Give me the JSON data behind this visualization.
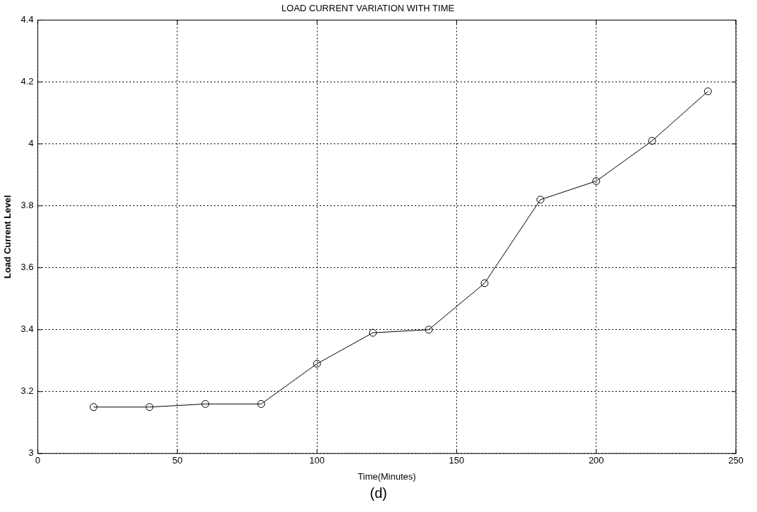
{
  "chart_data": {
    "type": "line",
    "title": "LOAD CURRENT VARIATION WITH TIME",
    "xlabel": "Time(Minutes)",
    "ylabel": "Load Current Level",
    "x": [
      20,
      40,
      60,
      80,
      100,
      120,
      140,
      160,
      180,
      200,
      220,
      240
    ],
    "series": [
      {
        "color": "#000000",
        "values": [
          3.15,
          3.15,
          3.16,
          3.16,
          3.29,
          3.39,
          3.4,
          3.55,
          3.82,
          3.88,
          4.01,
          4.17
        ]
      }
    ],
    "xlim": [
      0,
      250
    ],
    "xticks": [
      0,
      50,
      100,
      150,
      200,
      250
    ],
    "ylim": [
      3,
      4.4
    ],
    "yticks": [
      3,
      3.2,
      3.4,
      3.6,
      3.8,
      4,
      4.2,
      4.4
    ],
    "grid": true,
    "legend": false,
    "marker": "circle",
    "line_style": "solid",
    "annotations": [
      "(d)"
    ]
  }
}
